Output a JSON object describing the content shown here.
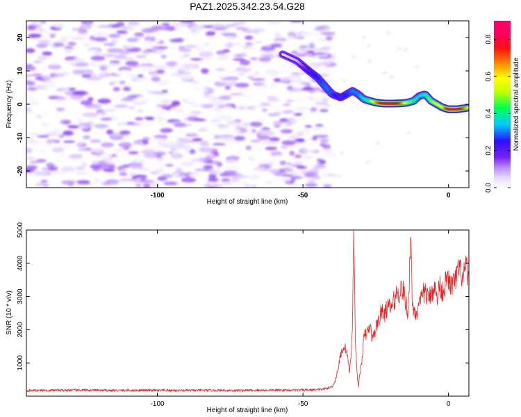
{
  "title": "PAZ1.2025.342.23.54.G28",
  "chart_data": [
    {
      "type": "heatmap",
      "name": "spectrogram",
      "xlabel": "Height of straight line (km)",
      "ylabel": "Frequency (Hz)",
      "xlim": [
        -145,
        7
      ],
      "ylim": [
        -25,
        25
      ],
      "xticks": [
        -100,
        -50,
        0
      ],
      "xtick_labels": [
        "-100",
        "-50",
        "0"
      ],
      "yticks": [
        -20,
        -10,
        0,
        10,
        20
      ],
      "ytick_labels": [
        "-20",
        "-10",
        "0",
        "10",
        "20"
      ],
      "colorbar": {
        "label": "Normalized spectral amplitude",
        "range": [
          0,
          0.9
        ],
        "ticks": [
          0.0,
          0.2,
          0.4,
          0.6,
          0.8
        ],
        "tick_labels": [
          "0.0",
          "0.2",
          "0.4",
          "0.6",
          "0.8"
        ],
        "colormap": "rainbow (white, violet, blue, cyan, green, yellow, orange, red, magenta)"
      },
      "noise_region": {
        "x_range": [
          -145,
          -40
        ],
        "freq_range": [
          -25,
          25
        ],
        "amplitude_range": [
          0.0,
          0.15
        ]
      },
      "signal_track": {
        "x": [
          -57,
          -52,
          -48,
          -45,
          -42,
          -40,
          -37,
          -35,
          -33,
          -31,
          -29,
          -27,
          -25,
          -22,
          -19,
          -16,
          -14,
          -12,
          -10,
          -8,
          -6,
          -4,
          -2,
          0,
          3,
          7
        ],
        "frequency": [
          15,
          13,
          10,
          8,
          5,
          3,
          2,
          3,
          4,
          3,
          1.5,
          1,
          0.5,
          0.2,
          0.2,
          0.3,
          0.5,
          1,
          2.5,
          3,
          1,
          0,
          -1,
          -1.5,
          -1.5,
          -1
        ],
        "amplitude": [
          0.05,
          0.08,
          0.2,
          0.25,
          0.3,
          0.28,
          0.2,
          0.25,
          0.3,
          0.3,
          0.38,
          0.45,
          0.65,
          0.85,
          0.85,
          0.7,
          0.5,
          0.45,
          0.35,
          0.4,
          0.48,
          0.55,
          0.6,
          0.8,
          0.85,
          0.6
        ]
      }
    },
    {
      "type": "line",
      "name": "snr",
      "xlabel": "Height of straight line (km)",
      "ylabel": "SNR (10 * v/v)",
      "xlim": [
        -145,
        7
      ],
      "ylim": [
        0,
        5000
      ],
      "xticks": [
        -100,
        -50,
        0
      ],
      "xtick_labels": [
        "-100",
        "-50",
        "0"
      ],
      "yticks": [
        1000,
        2000,
        3000,
        4000,
        5000
      ],
      "ytick_labels": [
        "1000",
        "2000",
        "3000",
        "4000",
        "5000"
      ],
      "color": "#ee2222",
      "series": [
        {
          "name": "SNR",
          "x": [
            -145,
            -135,
            -125,
            -115,
            -105,
            -95,
            -85,
            -75,
            -65,
            -55,
            -45,
            -42,
            -40,
            -39,
            -38,
            -37,
            -36,
            -35,
            -34,
            -33.5,
            -33,
            -32.5,
            -32,
            -31.5,
            -31,
            -30,
            -29,
            -28,
            -27,
            -26,
            -25,
            -24,
            -23,
            -22,
            -21,
            -20,
            -19,
            -18,
            -17,
            -16,
            -15,
            -14,
            -13.5,
            -13,
            -12.5,
            -12,
            -11,
            -10,
            -9,
            -8,
            -7,
            -6,
            -5,
            -4,
            -3,
            -2,
            -1,
            0,
            1,
            2,
            3,
            4,
            5,
            6,
            7
          ],
          "y": [
            170,
            175,
            180,
            170,
            175,
            170,
            175,
            170,
            175,
            180,
            190,
            230,
            280,
            450,
            800,
            1250,
            1500,
            1400,
            700,
            1200,
            2200,
            5000,
            1800,
            800,
            300,
            900,
            1800,
            1900,
            2100,
            1700,
            2050,
            2300,
            2550,
            2450,
            2700,
            2650,
            2800,
            3050,
            3100,
            3250,
            3000,
            2400,
            3400,
            5000,
            2900,
            2600,
            2500,
            2700,
            3000,
            3200,
            2900,
            3100,
            3300,
            2950,
            3350,
            3150,
            3400,
            3500,
            3300,
            3400,
            3700,
            3800,
            3500,
            3900,
            3500
          ]
        }
      ]
    }
  ]
}
